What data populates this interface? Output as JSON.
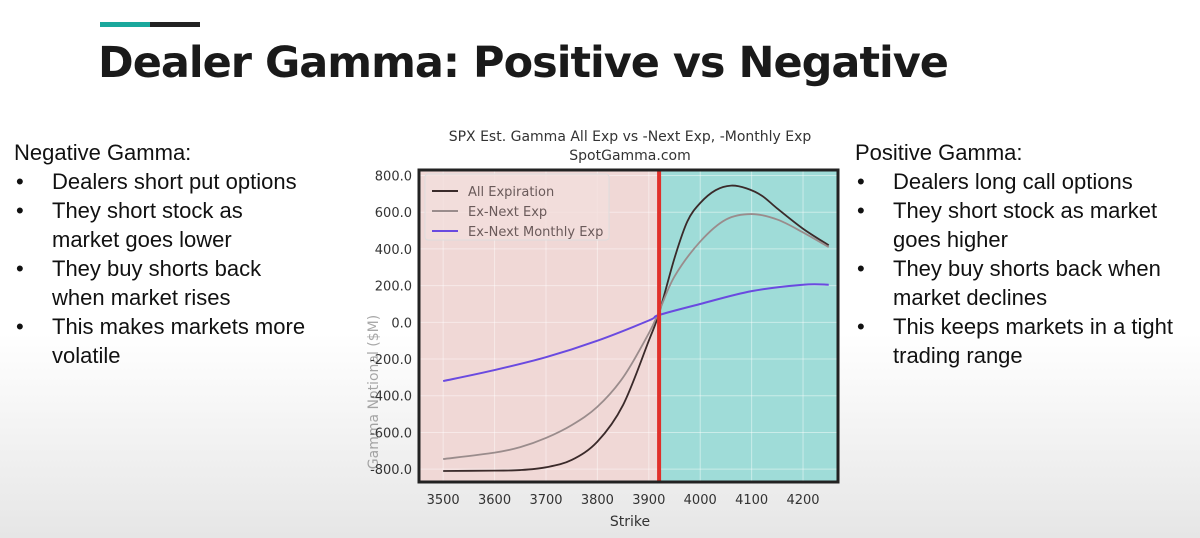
{
  "slide": {
    "title": "Dealer Gamma: Positive vs Negative",
    "accent_colors": [
      "#1aa89c",
      "#222222"
    ]
  },
  "left": {
    "heading": "Negative Gamma:",
    "bullets": [
      "Dealers short put options",
      "They short stock as market goes lower",
      "They buy shorts back when market rises",
      "This makes markets more volatile"
    ]
  },
  "right": {
    "heading": "Positive Gamma:",
    "bullets": [
      "Dealers long call options",
      "They short stock as market goes higher",
      "They buy shorts back when market declines",
      "This keeps markets in a tight trading range"
    ]
  },
  "chart_data": {
    "type": "line",
    "title": "SPX Est. Gamma All Exp vs -Next Exp, -Monthly Exp",
    "subtitle": "SpotGamma.com",
    "xlabel": "Strike",
    "ylabel": "Gamma Notional ($M)",
    "xlim": [
      3453,
      4268
    ],
    "ylim": [
      -870,
      830
    ],
    "xticks": [
      3500,
      3600,
      3700,
      3800,
      3900,
      4000,
      4100,
      4200
    ],
    "yticks": [
      800,
      600,
      400,
      200,
      0,
      -200,
      -400,
      -600,
      -800
    ],
    "ytick_labels": [
      "800.0",
      "600.0",
      "400.0",
      "200.0",
      "0.0",
      "-200.0",
      "-400.0",
      "-600.0",
      "-800.0"
    ],
    "spot_line": 3920,
    "regions": {
      "negative_color": "#f0d8d6",
      "positive_color": "#9fdcd8",
      "spot_line_color": "#e0302a"
    },
    "legend_position": "top-left",
    "series": [
      {
        "name": "All Expiration",
        "color": "#3a2a2a",
        "x": [
          3500,
          3600,
          3650,
          3700,
          3750,
          3800,
          3850,
          3900,
          3920,
          3950,
          3975,
          4000,
          4030,
          4060,
          4090,
          4120,
          4150,
          4200,
          4250
        ],
        "y": [
          -810,
          -808,
          -805,
          -790,
          -750,
          -650,
          -450,
          -100,
          50,
          350,
          550,
          650,
          720,
          745,
          730,
          690,
          620,
          510,
          420
        ]
      },
      {
        "name": "Ex-Next Exp",
        "color": "#9a8c8c",
        "x": [
          3500,
          3600,
          3650,
          3700,
          3750,
          3800,
          3850,
          3900,
          3920,
          3950,
          4000,
          4050,
          4100,
          4150,
          4200,
          4250
        ],
        "y": [
          -745,
          -710,
          -680,
          -630,
          -560,
          -460,
          -300,
          -60,
          60,
          250,
          440,
          560,
          590,
          560,
          490,
          410
        ]
      },
      {
        "name": "Ex-Next Monthly Exp",
        "color": "#6a4ae0",
        "x": [
          3500,
          3600,
          3700,
          3800,
          3900,
          3920,
          4000,
          4100,
          4200,
          4250
        ],
        "y": [
          -320,
          -260,
          -190,
          -100,
          10,
          40,
          100,
          170,
          205,
          205
        ]
      }
    ]
  }
}
